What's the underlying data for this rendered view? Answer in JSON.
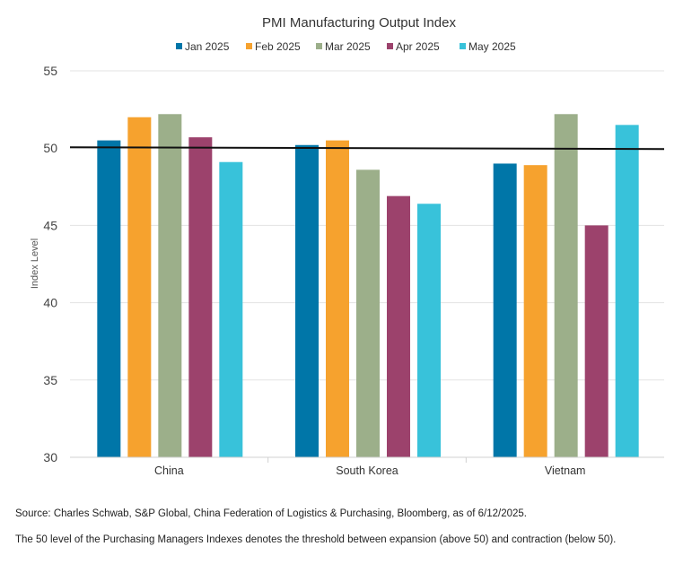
{
  "chart_data": {
    "type": "bar",
    "title": "PMI Manufacturing Output Index",
    "ylabel": "Index Level",
    "xlabel": "",
    "ylim": [
      30,
      55
    ],
    "yticks": [
      30,
      35,
      40,
      45,
      50,
      55
    ],
    "categories": [
      "China",
      "South Korea",
      "Vietnam"
    ],
    "series": [
      {
        "name": "Jan 2025",
        "color": "#0076a8",
        "values": [
          50.5,
          50.2,
          49.0
        ]
      },
      {
        "name": "Feb 2025",
        "color": "#f6a22e",
        "values": [
          52.0,
          50.5,
          48.9
        ]
      },
      {
        "name": "Mar 2025",
        "color": "#9caf8a",
        "values": [
          52.2,
          48.6,
          52.2
        ]
      },
      {
        "name": "Apr 2025",
        "color": "#9c426c",
        "values": [
          50.7,
          46.9,
          45.0
        ]
      },
      {
        "name": "May 2025",
        "color": "#38c2da",
        "values": [
          49.1,
          46.4,
          51.5
        ]
      }
    ],
    "reference_line": 50,
    "legend_position": "top",
    "grid": "horizontal"
  },
  "notes": {
    "source": "Source: Charles Schwab, S&P Global, China Federation of Logistics & Purchasing, Bloomberg, as of 6/12/2025.",
    "threshold": "The 50 level of the Purchasing Managers Indexes denotes the threshold between expansion (above 50) and contraction (below 50)."
  }
}
